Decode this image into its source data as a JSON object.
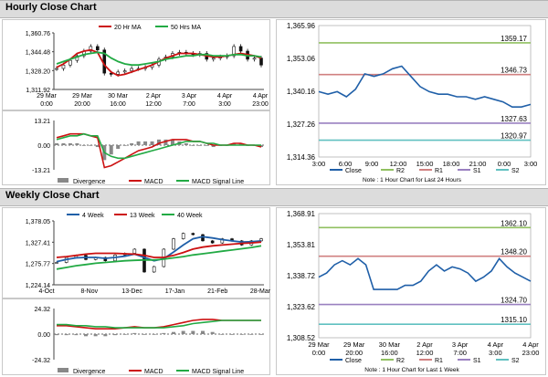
{
  "sections": {
    "hourly": "Hourly Close Chart",
    "weekly": "Weekly Close Chart"
  },
  "colors": {
    "ma_short": "#cc1111",
    "ma_long": "#22aa44",
    "candle": "#111111",
    "macd": "#cc1111",
    "signal": "#22aa44",
    "divergence": "#888888",
    "close": "#1f5fa8",
    "r2": "#90c060",
    "r1": "#d08080",
    "s1": "#9a80c0",
    "s2": "#60c0c0"
  },
  "chart_data": [
    {
      "type": "line",
      "id": "hourly-price",
      "title": "Hourly Close Chart",
      "legend": [
        "20 Hr MA",
        "50 Hrs MA"
      ],
      "y_ticks": [
        "1,360.76",
        "1,344.48",
        "1,328.20",
        "1,311.92"
      ],
      "ylim": [
        1311.92,
        1360.76
      ],
      "x_ticks": [
        [
          "29 Mar",
          "0:00"
        ],
        [
          "29 Mar",
          "20:00"
        ],
        [
          "30 Mar",
          "16:00"
        ],
        [
          "2 Apr",
          "12:00"
        ],
        [
          "3 Apr",
          "7:00"
        ],
        [
          "4 Apr",
          "3:00"
        ],
        [
          "4 Apr",
          "23:00"
        ]
      ],
      "series": [
        {
          "name": "Price",
          "values": [
            1330,
            1333,
            1337,
            1341,
            1345,
            1349,
            1346,
            1326,
            1325,
            1327,
            1328,
            1330,
            1330,
            1331,
            1333,
            1338,
            1340,
            1343,
            1344,
            1343,
            1342,
            1343,
            1338,
            1339,
            1340,
            1341,
            1349,
            1345,
            1338,
            1339,
            1333
          ]
        },
        {
          "name": "20 Hr MA",
          "values": [
            1331,
            1334,
            1338,
            1343,
            1345,
            1346,
            1344,
            1333,
            1327,
            1324,
            1325,
            1327,
            1329,
            1331,
            1333,
            1336,
            1339,
            1341,
            1343,
            1343,
            1343,
            1342,
            1341,
            1340,
            1340,
            1341,
            1342,
            1343,
            1342,
            1341,
            1339
          ]
        },
        {
          "name": "50 Hrs MA",
          "values": [
            1334,
            1336,
            1338,
            1340,
            1342,
            1343,
            1344,
            1343,
            1339,
            1336,
            1334,
            1333,
            1333,
            1334,
            1335,
            1336,
            1338,
            1339,
            1340,
            1341,
            1341,
            1342,
            1342,
            1341,
            1341,
            1341,
            1342,
            1342,
            1341,
            1341,
            1340
          ]
        }
      ]
    },
    {
      "type": "line",
      "id": "hourly-macd",
      "legend": [
        "Divergence",
        "MACD",
        "MACD Signal Line"
      ],
      "y_ticks": [
        "13.21",
        "0.00",
        "-13.21"
      ],
      "ylim": [
        -13.21,
        13.21
      ],
      "series": [
        {
          "name": "MACD",
          "values": [
            4,
            5,
            6,
            6,
            6,
            5,
            4,
            -12,
            -11,
            -9,
            -7,
            -5,
            -3,
            -2,
            -1,
            1,
            2,
            3,
            3,
            3,
            2,
            2,
            1,
            0,
            0,
            0,
            1,
            1,
            0,
            0,
            -1
          ]
        },
        {
          "name": "MACD Signal Line",
          "values": [
            3,
            4,
            5,
            5,
            6,
            5,
            5,
            -4,
            -6,
            -7,
            -7,
            -6,
            -5,
            -4,
            -3,
            -2,
            -1,
            0,
            1,
            2,
            2,
            2,
            1,
            1,
            0,
            0,
            0,
            0,
            0,
            0,
            0
          ]
        },
        {
          "name": "Divergence",
          "values": [
            1,
            1,
            1,
            1,
            0,
            0,
            -1,
            -8,
            -5,
            -2,
            0,
            1,
            2,
            2,
            2,
            3,
            3,
            3,
            2,
            1,
            0,
            0,
            0,
            -1,
            0,
            0,
            1,
            1,
            0,
            0,
            -1
          ]
        }
      ]
    },
    {
      "type": "line",
      "id": "hourly-pivot",
      "footnote": "Note : 1 Hour Chart for Last 24 Hours",
      "legend": [
        "Close",
        "R2",
        "R1",
        "S1",
        "S2"
      ],
      "y_ticks": [
        "1,365.96",
        "1,353.06",
        "1,340.16",
        "1,327.26",
        "1,314.36"
      ],
      "ylim": [
        1314.36,
        1365.96
      ],
      "x_ticks": [
        "3:00",
        "6:00",
        "9:00",
        "12:00",
        "15:00",
        "18:00",
        "21:00",
        "0:00",
        "3:00"
      ],
      "levels": [
        {
          "name": "R2",
          "value": 1359.17,
          "label": "1359.17"
        },
        {
          "name": "R1",
          "value": 1346.73,
          "label": "1346.73"
        },
        {
          "name": "S1",
          "value": 1327.63,
          "label": "1327.63"
        },
        {
          "name": "S2",
          "value": 1320.97,
          "label": "1320.97"
        }
      ],
      "series": [
        {
          "name": "Close",
          "values": [
            1340,
            1339,
            1340,
            1338,
            1341,
            1347,
            1346,
            1347,
            1349,
            1350,
            1346,
            1342,
            1340,
            1339,
            1339,
            1338,
            1338,
            1337,
            1338,
            1337,
            1336,
            1334,
            1334,
            1335
          ]
        }
      ]
    },
    {
      "type": "line",
      "id": "weekly-price",
      "title": "Weekly Close Chart",
      "legend": [
        "4 Week",
        "13 Week",
        "40 Week"
      ],
      "y_ticks": [
        "1,378.05",
        "1,327.41",
        "1,275.77",
        "1,224.14"
      ],
      "ylim": [
        1224.14,
        1378.05
      ],
      "x_ticks": [
        "4-Oct",
        "8-Nov",
        "13-Dec",
        "17-Jan",
        "21-Feb",
        "28-Mar"
      ],
      "series": [
        {
          "name": "Price",
          "values": [
            1278,
            1290,
            1295,
            1285,
            1290,
            1282,
            1296,
            1300,
            1310,
            1255,
            1268,
            1310,
            1335,
            1348,
            1345,
            1330,
            1325,
            1335,
            1330,
            1320,
            1330,
            1335
          ]
        },
        {
          "name": "4 Week",
          "values": [
            1280,
            1285,
            1289,
            1290,
            1290,
            1288,
            1290,
            1293,
            1298,
            1290,
            1282,
            1287,
            1303,
            1320,
            1335,
            1340,
            1337,
            1333,
            1330,
            1327,
            1328,
            1330
          ]
        },
        {
          "name": "13 Week",
          "values": [
            1290,
            1292,
            1295,
            1298,
            1300,
            1300,
            1300,
            1299,
            1298,
            1295,
            1290,
            1290,
            1295,
            1302,
            1310,
            1315,
            1318,
            1320,
            1322,
            1324,
            1325,
            1327
          ]
        },
        {
          "name": "40 Week",
          "values": [
            1262,
            1266,
            1270,
            1273,
            1276,
            1278,
            1280,
            1282,
            1283,
            1284,
            1284,
            1286,
            1289,
            1292,
            1296,
            1299,
            1302,
            1305,
            1308,
            1311,
            1314,
            1318
          ]
        }
      ]
    },
    {
      "type": "line",
      "id": "weekly-macd",
      "legend": [
        "Divergence",
        "MACD",
        "MACD Signal Line"
      ],
      "y_ticks": [
        "24.32",
        "0.00",
        "-24.32"
      ],
      "ylim": [
        -24.32,
        24.32
      ],
      "series": [
        {
          "name": "MACD",
          "values": [
            8,
            8,
            7,
            6,
            5,
            5,
            5,
            6,
            7,
            6,
            6,
            7,
            9,
            11,
            13,
            14,
            14,
            13,
            13,
            13,
            13,
            13
          ]
        },
        {
          "name": "MACD Signal Line",
          "values": [
            9,
            9,
            8,
            8,
            7,
            7,
            6,
            6,
            6,
            6,
            6,
            6,
            7,
            8,
            10,
            11,
            12,
            13,
            13,
            13,
            13,
            13
          ]
        },
        {
          "name": "Divergence",
          "values": [
            -1,
            -1,
            -1,
            -2,
            -2,
            -2,
            -1,
            0,
            1,
            0,
            0,
            1,
            2,
            3,
            3,
            3,
            2,
            0,
            0,
            0,
            0,
            0
          ]
        }
      ]
    },
    {
      "type": "line",
      "id": "weekly-pivot",
      "footnote": "Note : 1 Hour Chart for Last 1 Week",
      "legend": [
        "Close",
        "R2",
        "R1",
        "S1",
        "S2"
      ],
      "y_ticks": [
        "1,368.91",
        "1,353.81",
        "1,338.72",
        "1,323.62",
        "1,308.52"
      ],
      "ylim": [
        1308.52,
        1368.91
      ],
      "x_ticks": [
        [
          "29 Mar",
          "0:00"
        ],
        [
          "29 Mar",
          "20:00"
        ],
        [
          "30 Mar",
          "16:00"
        ],
        [
          "2 Apr",
          "12:00"
        ],
        [
          "3 Apr",
          "7:00"
        ],
        [
          "4 Apr",
          "3:00"
        ],
        [
          "4 Apr",
          "23:00"
        ]
      ],
      "levels": [
        {
          "name": "R2",
          "value": 1362.1,
          "label": "1362.10"
        },
        {
          "name": "R1",
          "value": 1348.2,
          "label": "1348.20"
        },
        {
          "name": "S1",
          "value": 1324.7,
          "label": "1324.70"
        },
        {
          "name": "S2",
          "value": 1315.1,
          "label": "1315.10"
        }
      ],
      "series": [
        {
          "name": "Close",
          "values": [
            1338,
            1340,
            1344,
            1346,
            1344,
            1347,
            1344,
            1332,
            1332,
            1332,
            1332,
            1334,
            1334,
            1336,
            1341,
            1344,
            1341,
            1343,
            1342,
            1340,
            1336,
            1338,
            1341,
            1347,
            1343,
            1340,
            1338,
            1336
          ]
        }
      ]
    }
  ]
}
